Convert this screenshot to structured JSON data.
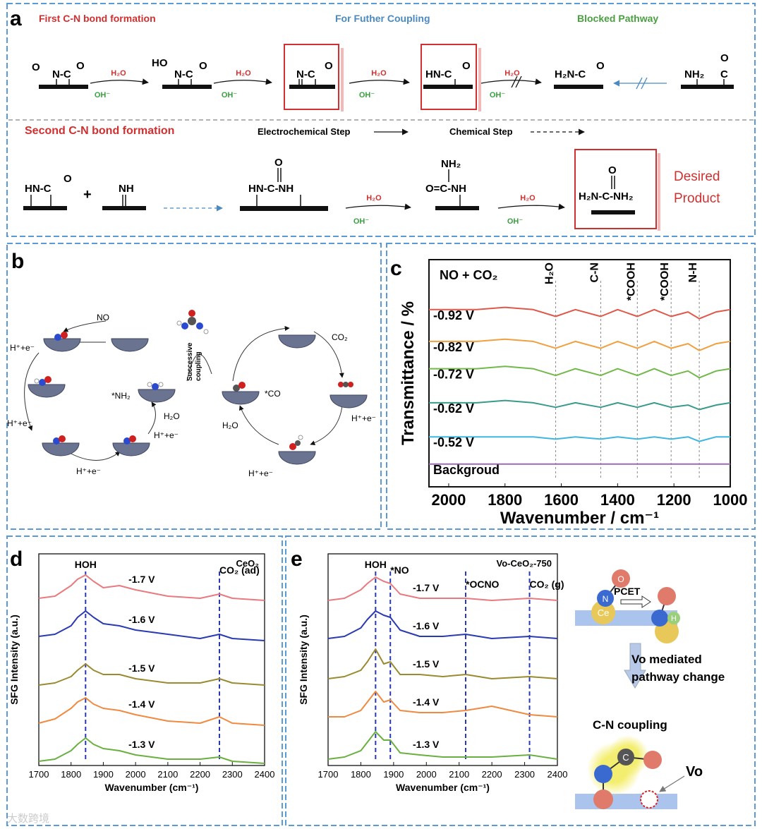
{
  "panel_a": {
    "label": "a",
    "headings": [
      "First C-N bond formation",
      "For Futher Coupling",
      "Blocked Pathway"
    ],
    "row1": {
      "molecules": [
        [
          "O",
          "N-C",
          "O"
        ],
        [
          "HO",
          "N-C",
          "O"
        ],
        [
          "N-C",
          "O"
        ],
        [
          "HN-C",
          "O"
        ],
        [
          "H₂N-C",
          "O"
        ],
        [
          "NH₂",
          "O",
          "C"
        ]
      ],
      "reagents": [
        [
          "H₂O",
          "OH⁻"
        ],
        [
          "H₂O",
          "OH⁻"
        ],
        [
          "H₂O",
          "OH⁻"
        ],
        [
          "H₂O",
          "OH⁻"
        ]
      ]
    },
    "row2_title": "Second C-N bond formation",
    "legend": [
      "Electrochemical Step",
      "Chemical Step"
    ],
    "row2": {
      "molecules": [
        [
          "HN-C",
          "O"
        ],
        [
          "+"
        ],
        [
          "NH"
        ],
        [
          "O",
          "HN-C-NH"
        ],
        [
          "NH₂",
          "O=C-NH"
        ],
        [
          "O",
          "H₂N-C-NH₂"
        ]
      ],
      "reagents": [
        [
          "H₂O",
          "OH⁻"
        ],
        [
          "H₂O",
          "OH⁻"
        ]
      ]
    },
    "product": [
      "Desired",
      "Product"
    ]
  },
  "panel_b": {
    "label": "b",
    "texts": [
      "NO",
      "H⁺+e⁻",
      "H⁺+e⁻",
      "H⁺+e⁻",
      "*NH₂",
      "H₂O",
      "H⁺+e⁻",
      "Successive",
      "coupling",
      "CO₂",
      "*CO",
      "H⁺+e⁻",
      "H₂O",
      "H⁺+e⁻"
    ]
  },
  "chart_data": [
    {
      "type": "line",
      "panel": "c",
      "note": "NO + CO₂",
      "xlabel": "Wavenumber / cm⁻¹",
      "ylabel": "Transmittance / %",
      "xlim": [
        2070,
        1000
      ],
      "xticks": [
        2000,
        1800,
        1600,
        1400,
        1200,
        1000
      ],
      "ylim": [
        0,
        10
      ],
      "x": [
        2070,
        2000,
        1900,
        1800,
        1700,
        1620,
        1550,
        1460,
        1400,
        1330,
        1270,
        1210,
        1150,
        1110,
        1050,
        1000
      ],
      "annotations": [
        {
          "text": "H₂O",
          "x": 1620
        },
        {
          "text": "C-N",
          "x": 1460
        },
        {
          "text": "*COOH",
          "x": 1330
        },
        {
          "text": "*COOH",
          "x": 1210
        },
        {
          "text": "N-H",
          "x": 1110
        }
      ],
      "series": [
        {
          "name": "-0.92 V",
          "color": "#e0584a",
          "values": [
            7.8,
            7.8,
            7.8,
            7.9,
            7.8,
            7.5,
            7.8,
            7.5,
            7.8,
            7.5,
            7.8,
            7.5,
            7.7,
            7.4,
            7.7,
            7.8
          ]
        },
        {
          "name": "-0.82 V",
          "color": "#f0a040",
          "values": [
            6.4,
            6.4,
            6.4,
            6.5,
            6.4,
            6.1,
            6.4,
            6.1,
            6.4,
            6.1,
            6.4,
            6.1,
            6.3,
            6.0,
            6.3,
            6.4
          ]
        },
        {
          "name": "-0.72 V",
          "color": "#72b84a",
          "values": [
            5.2,
            5.2,
            5.2,
            5.3,
            5.2,
            4.9,
            5.2,
            4.9,
            5.2,
            4.9,
            5.2,
            4.9,
            5.1,
            4.8,
            5.1,
            5.2
          ]
        },
        {
          "name": "-0.62 V",
          "color": "#3a9a8c",
          "values": [
            3.7,
            3.7,
            3.7,
            3.8,
            3.7,
            3.5,
            3.7,
            3.5,
            3.7,
            3.5,
            3.7,
            3.5,
            3.6,
            3.4,
            3.6,
            3.7
          ]
        },
        {
          "name": "-0.52 V",
          "color": "#3fb6e0",
          "values": [
            2.2,
            2.2,
            2.2,
            2.2,
            2.2,
            2.1,
            2.2,
            2.1,
            2.2,
            2.1,
            2.2,
            2.1,
            2.2,
            2.0,
            2.2,
            2.2
          ]
        },
        {
          "name": "Backgroud",
          "color": "#9b6bb0",
          "values": [
            1.0,
            1.0,
            1.0,
            1.0,
            1.0,
            1.0,
            1.0,
            1.0,
            1.0,
            1.0,
            1.0,
            1.0,
            1.0,
            1.0,
            1.0,
            1.0
          ]
        }
      ]
    },
    {
      "type": "line",
      "panel": "d",
      "note": "CeO₂",
      "xlabel": "Wavenumber (cm⁻¹)",
      "ylabel": "SFG Intensity (a.u.)",
      "xlim": [
        1700,
        2400
      ],
      "xticks": [
        1700,
        1800,
        1900,
        2000,
        2100,
        2200,
        2300,
        2400
      ],
      "ylim": [
        0,
        10
      ],
      "x": [
        1700,
        1750,
        1800,
        1820,
        1845,
        1870,
        1900,
        1950,
        2000,
        2100,
        2200,
        2260,
        2300,
        2400
      ],
      "annotations": [
        {
          "text": "HOH",
          "x": 1845
        },
        {
          "text": "CO₂ (ad)",
          "x": 2260
        }
      ],
      "series": [
        {
          "name": "-1.7 V",
          "color": "#e87a80",
          "values": [
            7.9,
            8.0,
            8.5,
            8.8,
            9.0,
            8.7,
            8.4,
            8.5,
            8.3,
            8.0,
            7.9,
            8.1,
            7.9,
            7.8
          ]
        },
        {
          "name": "-1.6 V",
          "color": "#2a3ab0",
          "values": [
            6.1,
            6.2,
            6.6,
            7.0,
            7.3,
            7.0,
            6.7,
            6.6,
            6.4,
            6.2,
            6.0,
            6.2,
            6.0,
            5.9
          ]
        },
        {
          "name": "-1.5 V",
          "color": "#9a8a30",
          "values": [
            3.8,
            3.9,
            4.2,
            4.5,
            4.8,
            4.5,
            4.3,
            4.3,
            4.1,
            3.9,
            3.9,
            4.1,
            3.9,
            3.8
          ]
        },
        {
          "name": "-1.4 V",
          "color": "#f08a40",
          "values": [
            2.0,
            2.2,
            2.7,
            3.0,
            3.2,
            2.9,
            2.7,
            2.6,
            2.4,
            2.1,
            2.0,
            2.3,
            2.0,
            1.9
          ]
        },
        {
          "name": "-1.3 V",
          "color": "#6ab040",
          "values": [
            0.2,
            0.3,
            0.7,
            1.0,
            1.3,
            1.0,
            0.8,
            0.7,
            0.5,
            0.3,
            0.3,
            0.4,
            0.2,
            0.1
          ]
        }
      ]
    },
    {
      "type": "line",
      "panel": "e",
      "note": "Vo-CeO₂-750",
      "xlabel": "Wavenumber (cm⁻¹)",
      "ylabel": "SFG Intensity (a.u.)",
      "xlim": [
        1700,
        2400
      ],
      "xticks": [
        1700,
        1800,
        1900,
        2000,
        2100,
        2200,
        2300,
        2400
      ],
      "ylim": [
        0,
        10
      ],
      "x": [
        1700,
        1750,
        1800,
        1820,
        1845,
        1870,
        1890,
        1920,
        1980,
        2050,
        2120,
        2200,
        2315,
        2400
      ],
      "annotations": [
        {
          "text": "HOH",
          "x": 1845
        },
        {
          "text": "*NO",
          "x": 1890
        },
        {
          "text": "*OCNO",
          "x": 2120
        },
        {
          "text": "CO₂ (g)",
          "x": 2315
        }
      ],
      "series": [
        {
          "name": "-1.7 V",
          "color": "#e87a80",
          "values": [
            7.8,
            7.9,
            8.3,
            8.6,
            8.9,
            8.7,
            8.6,
            8.1,
            7.9,
            7.9,
            7.9,
            7.8,
            7.9,
            7.8
          ]
        },
        {
          "name": "-1.6 V",
          "color": "#2a3ab0",
          "values": [
            6.0,
            6.1,
            6.5,
            6.9,
            7.3,
            7.1,
            7.0,
            6.4,
            6.1,
            6.1,
            6.2,
            6.0,
            6.1,
            6.0
          ]
        },
        {
          "name": "-1.5 V",
          "color": "#9a8a30",
          "values": [
            4.1,
            4.2,
            4.5,
            4.9,
            5.5,
            4.8,
            4.9,
            4.3,
            4.3,
            4.2,
            4.3,
            4.1,
            4.2,
            4.1
          ]
        },
        {
          "name": "-1.4 V",
          "color": "#f08a40",
          "values": [
            2.3,
            2.3,
            2.6,
            3.0,
            3.5,
            3.0,
            3.1,
            2.6,
            2.5,
            2.5,
            2.6,
            2.8,
            2.4,
            2.3
          ]
        },
        {
          "name": "-1.3 V",
          "color": "#6ab040",
          "values": [
            0.3,
            0.4,
            0.7,
            1.1,
            1.6,
            1.2,
            1.2,
            0.6,
            0.5,
            0.4,
            0.4,
            0.4,
            0.5,
            0.3
          ]
        }
      ]
    }
  ],
  "schematic": {
    "atoms": [
      "O",
      "N",
      "H",
      "Ce",
      "C"
    ],
    "texts": [
      "PCET",
      "Vo mediated",
      "pathway change",
      "C-N coupling",
      "Vo"
    ]
  },
  "watermark": "大数跨境"
}
